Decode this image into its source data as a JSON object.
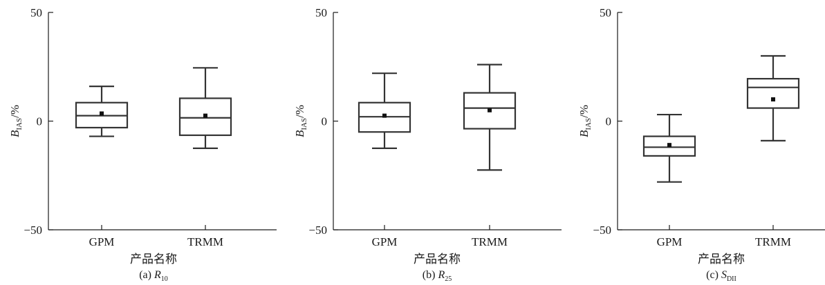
{
  "figure": {
    "panels": [
      {
        "id": "a",
        "caption_prefix": "(a) ",
        "caption_var": "R",
        "caption_sub": "10"
      },
      {
        "id": "b",
        "caption_prefix": "(b) ",
        "caption_var": "R",
        "caption_sub": "25"
      },
      {
        "id": "c",
        "caption_prefix": "(c) ",
        "caption_var": "S",
        "caption_sub": "DII"
      }
    ]
  },
  "chart_data": [
    {
      "type": "box",
      "caption": "(a) R10",
      "xlabel": "产品名称",
      "ylabel": "B_IAS/%",
      "ylabel_main": "B",
      "ylabel_sub": "IAS",
      "ylabel_unit": "/%",
      "ylim": [
        -50,
        50
      ],
      "yticks": [
        -50,
        0,
        50
      ],
      "yticklabels": [
        "−50",
        "0",
        "50"
      ],
      "categories": [
        "GPM",
        "TRMM"
      ],
      "boxes": [
        {
          "name": "GPM",
          "whisker_low": -7,
          "q1": -3,
          "median": 2.5,
          "q3": 8.5,
          "whisker_high": 16,
          "mean": 3.5
        },
        {
          "name": "TRMM",
          "whisker_low": -12.5,
          "q1": -6.5,
          "median": 1.5,
          "q3": 10.5,
          "whisker_high": 24.5,
          "mean": 2.5
        }
      ]
    },
    {
      "type": "box",
      "caption": "(b) R25",
      "xlabel": "产品名称",
      "ylabel": "B_IAS/%",
      "ylabel_main": "B",
      "ylabel_sub": "IAS",
      "ylabel_unit": "/%",
      "ylim": [
        -50,
        50
      ],
      "yticks": [
        -50,
        0,
        50
      ],
      "yticklabels": [
        "−50",
        "0",
        "50"
      ],
      "categories": [
        "GPM",
        "TRMM"
      ],
      "boxes": [
        {
          "name": "GPM",
          "whisker_low": -12.5,
          "q1": -5,
          "median": 2,
          "q3": 8.5,
          "whisker_high": 22,
          "mean": 2.5
        },
        {
          "name": "TRMM",
          "whisker_low": -22.5,
          "q1": -3.5,
          "median": 6,
          "q3": 13,
          "whisker_high": 26,
          "mean": 5
        }
      ]
    },
    {
      "type": "box",
      "caption": "(c) SDII",
      "xlabel": "产品名称",
      "ylabel": "B_IAS/%",
      "ylabel_main": "B",
      "ylabel_sub": "IAS",
      "ylabel_unit": "/%",
      "ylim": [
        -50,
        50
      ],
      "yticks": [
        -50,
        0,
        50
      ],
      "yticklabels": [
        "−50",
        "0",
        "50"
      ],
      "categories": [
        "GPM",
        "TRMM"
      ],
      "boxes": [
        {
          "name": "GPM",
          "whisker_low": -28,
          "q1": -16,
          "median": -12,
          "q3": -7,
          "whisker_high": 3,
          "mean": -11
        },
        {
          "name": "TRMM",
          "whisker_low": -9,
          "q1": 6,
          "median": 15.5,
          "q3": 19.5,
          "whisker_high": 30,
          "mean": 10
        }
      ]
    }
  ]
}
